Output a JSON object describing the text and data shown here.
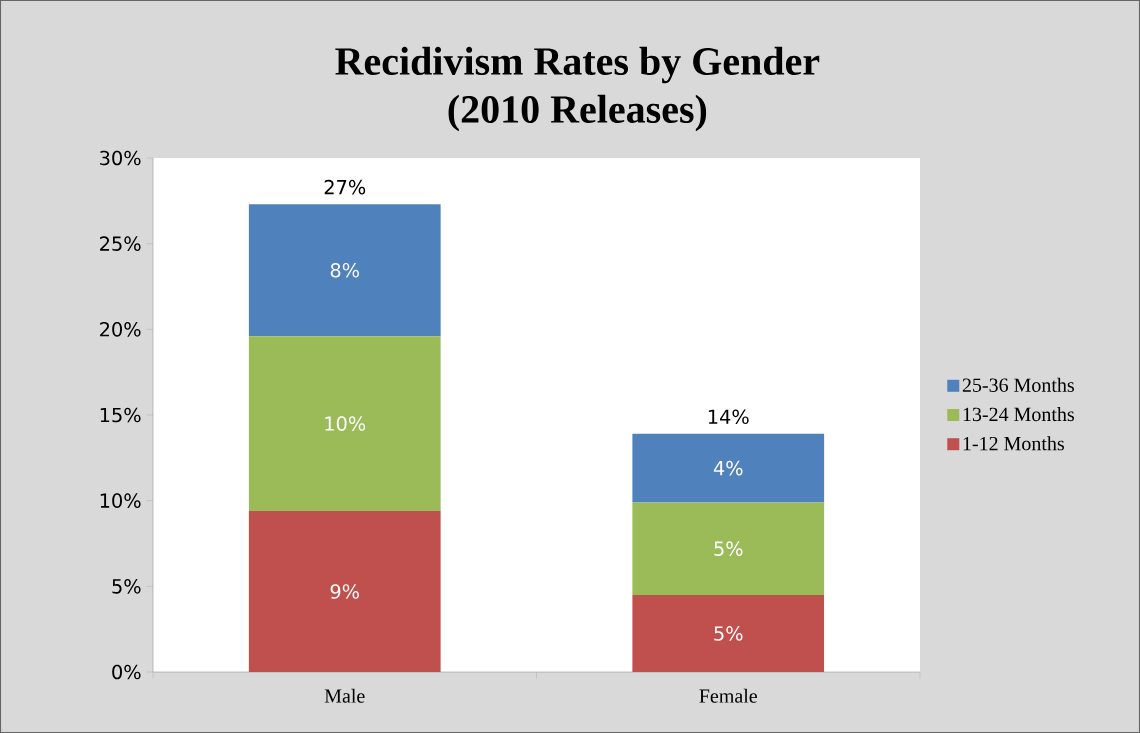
{
  "chart_data": {
    "type": "bar",
    "title": "Recidivism Rates by Gender\n(2010 Releases)",
    "stacked": true,
    "categories": [
      "Male",
      "Female"
    ],
    "series": [
      {
        "name": "1-12 Months",
        "color": "#c0504d",
        "values": [
          9.4,
          4.5
        ],
        "value_labels": [
          "9%",
          "5%"
        ]
      },
      {
        "name": "13-24 Months",
        "color": "#9bbb59",
        "values": [
          10.2,
          5.4
        ],
        "value_labels": [
          "10%",
          "5%"
        ]
      },
      {
        "name": "25-36 Months",
        "color": "#4f81bd",
        "values": [
          7.7,
          4.0
        ],
        "value_labels": [
          "8%",
          "4%"
        ]
      }
    ],
    "totals": [
      "27%",
      "14%"
    ],
    "ylim": [
      0,
      30
    ],
    "yticks": [
      {
        "value": 0,
        "label": "0%"
      },
      {
        "value": 5,
        "label": "5%"
      },
      {
        "value": 10,
        "label": "10%"
      },
      {
        "value": 15,
        "label": "15%"
      },
      {
        "value": 20,
        "label": "20%"
      },
      {
        "value": 25,
        "label": "25%"
      },
      {
        "value": 30,
        "label": "30%"
      }
    ],
    "legend": "right"
  }
}
